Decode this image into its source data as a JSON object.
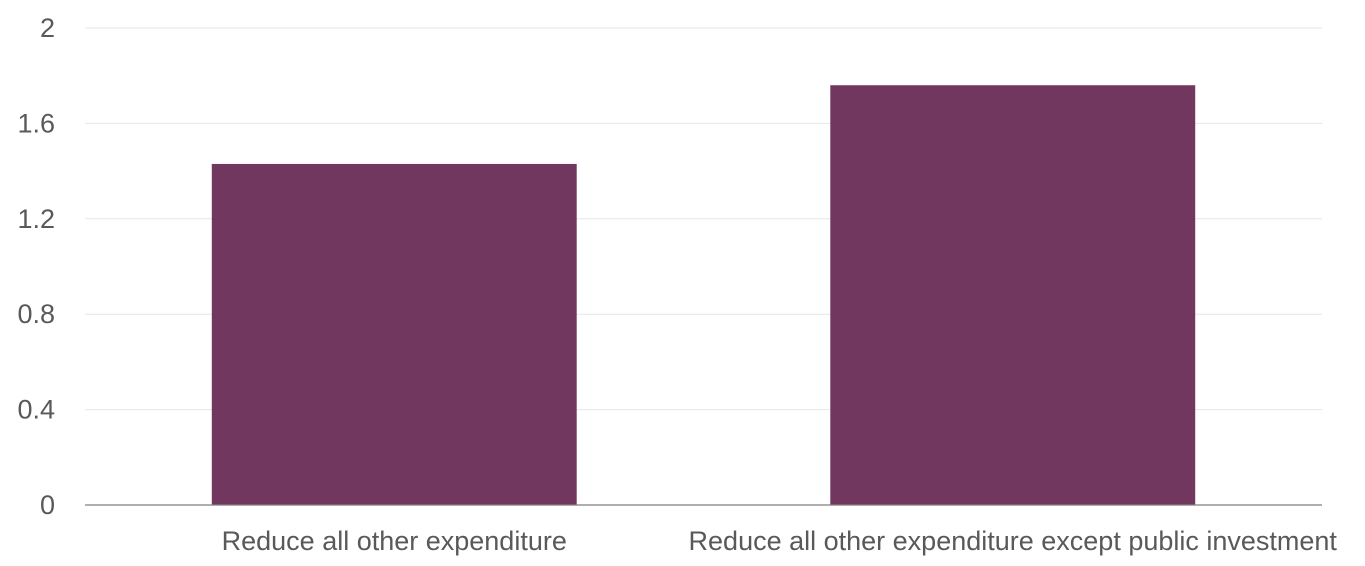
{
  "chart_data": {
    "type": "bar",
    "title": "",
    "xlabel": "",
    "ylabel": "",
    "categories": [
      "Reduce all other expenditure",
      "Reduce all other expenditure except public investment"
    ],
    "values": [
      1.43,
      1.76
    ],
    "ylim": [
      0,
      2
    ],
    "yticks": [
      "0",
      "0.4",
      "0.8",
      "1.2",
      "1.6",
      "2"
    ],
    "grid": true,
    "legend": "none",
    "colors": {
      "bar": "#71375F",
      "grid": "#E6E6E6",
      "axis": "#7F7F7F",
      "text": "#595959"
    }
  }
}
